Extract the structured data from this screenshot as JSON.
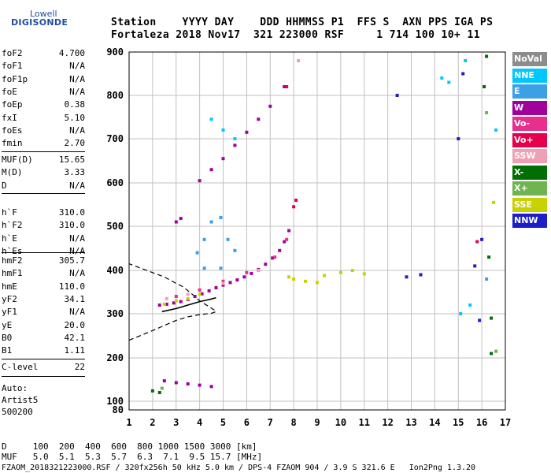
{
  "logo": {
    "top": "Lowell",
    "bottom": "DIGISONDE"
  },
  "header": {
    "line1": "Station    YYYY DAY    DDD HHMMSS P1  FFS S  AXN PPS IGA PS",
    "line2": "Fortaleza 2018 Nov17  321 223000 RSF     1 714 100 10+ 11"
  },
  "params_group1": [
    {
      "label": "foF2",
      "value": "4.700"
    },
    {
      "label": "foF1",
      "value": "N/A"
    },
    {
      "label": "foF1p",
      "value": "N/A"
    },
    {
      "label": "foE",
      "value": "N/A"
    },
    {
      "label": "foEp",
      "value": "0.38"
    },
    {
      "label": "fxI",
      "value": "5.10"
    },
    {
      "label": "foEs",
      "value": "N/A"
    },
    {
      "label": "fmin",
      "value": "2.70"
    }
  ],
  "params_group2": [
    {
      "label": "MUF(D)",
      "value": "15.65"
    },
    {
      "label": "M(D)",
      "value": "3.33"
    },
    {
      "label": "D",
      "value": "N/A"
    }
  ],
  "params_group3": [
    {
      "label": "h`F",
      "value": "310.0"
    },
    {
      "label": "h`F2",
      "value": "310.0"
    },
    {
      "label": "h`E",
      "value": "N/A"
    },
    {
      "label": "h`Es",
      "value": "N/A"
    }
  ],
  "params_group4": [
    {
      "label": "hmF2",
      "value": "305.7"
    },
    {
      "label": "hmF1",
      "value": "N/A"
    },
    {
      "label": "hmE",
      "value": "110.0"
    },
    {
      "label": "yF2",
      "value": "34.1"
    },
    {
      "label": "yF1",
      "value": "N/A"
    },
    {
      "label": "yE",
      "value": "20.0"
    },
    {
      "label": "B0",
      "value": "42.1"
    },
    {
      "label": "B1",
      "value": "1.11"
    }
  ],
  "params_group5": [
    {
      "label": "C-level",
      "value": "22"
    }
  ],
  "auto": {
    "line1": "Auto:",
    "line2": "Artist5",
    "line3": "500200"
  },
  "legend": [
    {
      "label": "NoVal",
      "color": "#8c8c8c"
    },
    {
      "label": "NNE",
      "color": "#00c8ff"
    },
    {
      "label": "E",
      "color": "#3ca0e6"
    },
    {
      "label": "W",
      "color": "#a0009c"
    },
    {
      "label": "Vo-",
      "color": "#e6308c"
    },
    {
      "label": "Vo+",
      "color": "#e6004c"
    },
    {
      "label": "SSW",
      "color": "#f0a0b4"
    },
    {
      "label": "X-",
      "color": "#006e00"
    },
    {
      "label": "X+",
      "color": "#6eb450"
    },
    {
      "label": "SSE",
      "color": "#c8d200"
    },
    {
      "label": "NNW",
      "color": "#1e1ec8"
    }
  ],
  "footer": {
    "line1": "D     100  200  400  600  800 1000 1500 3000 [km]",
    "line2": "MUF   5.0  5.1  5.3  5.7  6.3  7.1  9.5 15.7 [MHz]",
    "line3": "FZAOM_2018321223000.RSF / 320fx256h 50 kHz 5.0 km / DPS-4 FZAOM 904 / 3.9 S 321.6 E   Ion2Png 1.3.20"
  },
  "chart_data": {
    "type": "scatter",
    "title": "",
    "xlabel": "",
    "ylabel": "",
    "xlim": [
      1,
      17
    ],
    "ylim": [
      80,
      900
    ],
    "x_ticks": [
      "1",
      "2",
      "3",
      "4",
      "5",
      "6",
      "7",
      "8",
      "9",
      "10",
      "11",
      "12",
      "13",
      "14",
      "15",
      "16",
      "17"
    ],
    "y_ticks": [
      "80",
      "100",
      "200",
      "300",
      "400",
      "500",
      "600",
      "700",
      "800",
      "900"
    ],
    "grid": true,
    "series": [
      {
        "name": "W",
        "points": [
          [
            2.3,
            320
          ],
          [
            2.6,
            322
          ],
          [
            2.9,
            325
          ],
          [
            3.2,
            328
          ],
          [
            3.5,
            333
          ],
          [
            3.8,
            340
          ],
          [
            4.1,
            346
          ],
          [
            4.4,
            353
          ],
          [
            4.7,
            360
          ],
          [
            5.0,
            366
          ],
          [
            5.3,
            372
          ],
          [
            5.6,
            378
          ],
          [
            5.9,
            385
          ],
          [
            6.2,
            393
          ],
          [
            6.5,
            402
          ],
          [
            6.8,
            414
          ],
          [
            7.1,
            428
          ],
          [
            7.4,
            445
          ],
          [
            7.6,
            465
          ],
          [
            7.8,
            490
          ],
          [
            2.5,
            147
          ],
          [
            3.0,
            143
          ],
          [
            3.5,
            140
          ],
          [
            4.0,
            137
          ],
          [
            4.5,
            134
          ],
          [
            4.0,
            605
          ],
          [
            4.5,
            630
          ],
          [
            5.0,
            655
          ],
          [
            5.5,
            685
          ],
          [
            6.0,
            715
          ],
          [
            6.5,
            745
          ],
          [
            7.0,
            775
          ],
          [
            7.6,
            820
          ],
          [
            3.0,
            510
          ],
          [
            3.2,
            518
          ]
        ]
      },
      {
        "name": "SSE",
        "points": [
          [
            2.5,
            322
          ],
          [
            3.0,
            330
          ],
          [
            3.5,
            335
          ],
          [
            4.0,
            345
          ],
          [
            7.8,
            385
          ],
          [
            8.0,
            380
          ],
          [
            8.5,
            375
          ],
          [
            9.0,
            372
          ],
          [
            9.3,
            388
          ],
          [
            10.0,
            395
          ],
          [
            10.5,
            400
          ],
          [
            11.0,
            392
          ],
          [
            16.5,
            555
          ]
        ]
      },
      {
        "name": "E",
        "points": [
          [
            3.9,
            440
          ],
          [
            4.2,
            470
          ],
          [
            4.5,
            510
          ],
          [
            4.9,
            520
          ],
          [
            5.2,
            470
          ],
          [
            5.5,
            445
          ],
          [
            4.9,
            405
          ],
          [
            4.2,
            405
          ],
          [
            16.2,
            380
          ]
        ]
      },
      {
        "name": "NNE",
        "points": [
          [
            4.5,
            745
          ],
          [
            5.0,
            720
          ],
          [
            5.5,
            700
          ],
          [
            14.3,
            840
          ],
          [
            14.6,
            830
          ],
          [
            15.3,
            880
          ],
          [
            16.6,
            720
          ],
          [
            15.1,
            300
          ],
          [
            15.5,
            320
          ]
        ]
      },
      {
        "name": "Vo-",
        "points": [
          [
            3.0,
            340
          ],
          [
            4.0,
            355
          ],
          [
            5.0,
            375
          ],
          [
            6.0,
            395
          ],
          [
            7.2,
            430
          ],
          [
            7.7,
            470
          ]
        ]
      },
      {
        "name": "SSW",
        "points": [
          [
            2.6,
            335
          ],
          [
            3.5,
            345
          ],
          [
            5.0,
            370
          ],
          [
            6.5,
            400
          ],
          [
            8.2,
            880
          ]
        ]
      },
      {
        "name": "X-",
        "points": [
          [
            2.0,
            124
          ],
          [
            2.3,
            120
          ],
          [
            16.2,
            890
          ],
          [
            16.3,
            430
          ],
          [
            16.1,
            820
          ],
          [
            16.4,
            290
          ],
          [
            16.4,
            210
          ]
        ]
      },
      {
        "name": "X+",
        "points": [
          [
            2.4,
            130
          ],
          [
            16.6,
            215
          ],
          [
            16.2,
            760
          ]
        ]
      },
      {
        "name": "NNW",
        "points": [
          [
            12.4,
            800
          ],
          [
            13.4,
            390
          ],
          [
            15.0,
            700
          ],
          [
            15.2,
            850
          ],
          [
            15.7,
            410
          ],
          [
            15.9,
            285
          ],
          [
            16.0,
            470
          ],
          [
            12.8,
            385
          ]
        ]
      },
      {
        "name": "Vo+",
        "points": [
          [
            7.7,
            820
          ],
          [
            8.0,
            545
          ],
          [
            8.1,
            560
          ],
          [
            15.8,
            465
          ]
        ]
      }
    ],
    "curve_profile": {
      "points": [
        [
          1,
          240
        ],
        [
          2.0,
          262
        ],
        [
          3.0,
          285
        ],
        [
          3.5,
          293
        ],
        [
          4.0,
          298
        ],
        [
          4.5,
          301
        ],
        [
          4.7,
          305
        ],
        [
          4.7,
          306
        ],
        [
          4.0,
          330
        ],
        [
          3.6,
          349
        ],
        [
          3.3,
          362
        ],
        [
          3.0,
          370
        ],
        [
          2.5,
          385
        ],
        [
          2.0,
          395
        ],
        [
          1.5,
          405
        ],
        [
          1.0,
          415
        ]
      ]
    },
    "trace_F2": {
      "points": [
        [
          2.4,
          305
        ],
        [
          3.0,
          312
        ],
        [
          3.5,
          320
        ],
        [
          4.0,
          328
        ],
        [
          4.5,
          334
        ],
        [
          4.7,
          337
        ]
      ]
    }
  }
}
